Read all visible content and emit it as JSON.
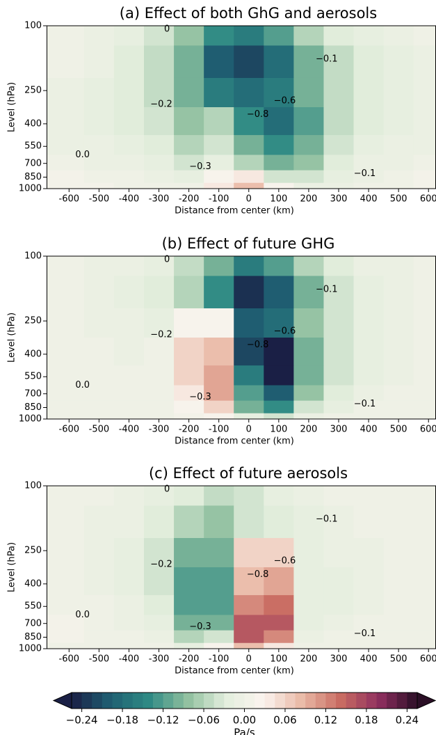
{
  "chart_data": [
    {
      "type": "contourf",
      "title": "(a) Effect of both GhG and aerosols",
      "xlabel": "Distance from center (km)",
      "ylabel": "Level (hPa)",
      "xlim": [
        -675,
        625
      ],
      "ylim": [
        1000,
        100
      ],
      "yscale": "log",
      "xticks": [
        -600,
        -500,
        -400,
        -300,
        -200,
        -100,
        0,
        100,
        200,
        300,
        400,
        500,
        600
      ],
      "yticks": [
        100,
        250,
        400,
        550,
        700,
        850,
        1000
      ],
      "x": [
        -600,
        -500,
        -400,
        -300,
        -200,
        -100,
        0,
        100,
        200,
        300,
        400,
        500,
        600
      ],
      "levels": [
        100,
        175,
        250,
        400,
        550,
        700,
        850,
        1000
      ],
      "values": [
        [
          0,
          -0.01,
          -0.02,
          -0.04,
          -0.08,
          -0.14,
          -0.16,
          -0.12,
          -0.06,
          -0.03,
          -0.02,
          -0.01,
          0
        ],
        [
          0,
          -0.01,
          -0.03,
          -0.05,
          -0.1,
          -0.2,
          -0.22,
          -0.18,
          -0.1,
          -0.05,
          -0.03,
          -0.02,
          -0.01
        ],
        [
          -0.01,
          -0.02,
          -0.03,
          -0.05,
          -0.1,
          -0.16,
          -0.18,
          -0.16,
          -0.1,
          -0.05,
          -0.03,
          -0.02,
          -0.01
        ],
        [
          -0.01,
          -0.02,
          -0.03,
          -0.04,
          -0.08,
          -0.06,
          -0.14,
          -0.18,
          -0.12,
          -0.05,
          -0.03,
          -0.02,
          -0.01
        ],
        [
          -0.01,
          -0.01,
          -0.02,
          -0.03,
          -0.06,
          -0.04,
          -0.1,
          -0.14,
          -0.1,
          -0.04,
          -0.02,
          -0.01,
          -0.01
        ],
        [
          0,
          -0.01,
          -0.01,
          -0.02,
          -0.04,
          -0.02,
          -0.06,
          -0.1,
          -0.08,
          -0.03,
          -0.01,
          -0.01,
          0
        ],
        [
          0.01,
          0,
          0,
          -0.01,
          -0.02,
          0.02,
          0.04,
          -0.04,
          -0.04,
          -0.02,
          -0.01,
          0,
          0.01
        ],
        [
          0.01,
          0.01,
          0,
          0,
          0,
          0.04,
          0.08,
          0.02,
          -0.01,
          -0.01,
          0,
          0,
          0.01
        ]
      ],
      "annotations": [
        {
          "text": "0",
          "x": -273,
          "level": 105
        },
        {
          "text": "−0.1",
          "x": 260,
          "level": 160
        },
        {
          "text": "−0.2",
          "x": -292,
          "level": 304
        },
        {
          "text": "−0.6",
          "x": 120,
          "level": 290
        },
        {
          "text": "−0.8",
          "x": 30,
          "level": 350
        },
        {
          "text": "−0.3",
          "x": -162,
          "level": 735
        },
        {
          "text": "−0.1",
          "x": 387,
          "level": 810
        },
        {
          "text": "0.0",
          "x": -555,
          "level": 620
        }
      ]
    },
    {
      "type": "contourf",
      "title": "(b) Effect of future GHG",
      "xlabel": "Distance from center (km)",
      "ylabel": "Level (hPa)",
      "xlim": [
        -675,
        625
      ],
      "ylim": [
        1000,
        100
      ],
      "yscale": "log",
      "xticks": [
        -600,
        -500,
        -400,
        -300,
        -200,
        -100,
        0,
        100,
        200,
        300,
        400,
        500,
        600
      ],
      "yticks": [
        100,
        250,
        400,
        550,
        700,
        850,
        1000
      ],
      "x": [
        -600,
        -500,
        -400,
        -300,
        -200,
        -100,
        0,
        100,
        200,
        300,
        400,
        500,
        600
      ],
      "levels": [
        100,
        175,
        250,
        400,
        550,
        700,
        850,
        1000
      ],
      "values": [
        [
          0,
          -0.01,
          -0.01,
          -0.02,
          -0.05,
          -0.1,
          -0.16,
          -0.12,
          -0.06,
          -0.03,
          -0.01,
          -0.01,
          0
        ],
        [
          0,
          -0.01,
          -0.02,
          -0.03,
          -0.06,
          -0.14,
          -0.24,
          -0.2,
          -0.1,
          -0.04,
          -0.02,
          -0.01,
          0
        ],
        [
          0,
          -0.01,
          -0.01,
          -0.02,
          0.02,
          0.02,
          -0.2,
          -0.18,
          -0.08,
          -0.04,
          -0.02,
          -0.01,
          0
        ],
        [
          0,
          0,
          -0.01,
          0,
          0.06,
          0.08,
          -0.22,
          -0.26,
          -0.1,
          -0.04,
          -0.02,
          -0.01,
          0
        ],
        [
          0,
          0,
          0,
          0,
          0.06,
          0.1,
          -0.16,
          -0.26,
          -0.1,
          -0.04,
          -0.02,
          -0.01,
          0
        ],
        [
          0,
          0,
          0,
          0,
          0.04,
          0.1,
          -0.12,
          -0.2,
          -0.08,
          -0.03,
          -0.01,
          0,
          0
        ],
        [
          0,
          0,
          0,
          0,
          0.02,
          0.06,
          -0.1,
          -0.14,
          -0.04,
          -0.02,
          0,
          0,
          0
        ],
        [
          0,
          0,
          0,
          0,
          0.01,
          0.02,
          -0.02,
          -0.04,
          -0.01,
          0,
          0,
          0,
          0
        ]
      ],
      "annotations": [
        {
          "text": "0",
          "x": -273,
          "level": 105
        },
        {
          "text": "−0.1",
          "x": 260,
          "level": 160
        },
        {
          "text": "−0.2",
          "x": -292,
          "level": 304
        },
        {
          "text": "−0.6",
          "x": 120,
          "level": 290
        },
        {
          "text": "−0.8",
          "x": 30,
          "level": 350
        },
        {
          "text": "−0.3",
          "x": -162,
          "level": 735
        },
        {
          "text": "−0.1",
          "x": 387,
          "level": 810
        },
        {
          "text": "0.0",
          "x": -555,
          "level": 620
        }
      ]
    },
    {
      "type": "contourf",
      "title": "(c) Effect of future aerosols",
      "xlabel": "Distance from center (km)",
      "ylabel": "Level (hPa)",
      "xlim": [
        -675,
        625
      ],
      "ylim": [
        1000,
        100
      ],
      "yscale": "log",
      "xticks": [
        -600,
        -500,
        -400,
        -300,
        -200,
        -100,
        0,
        100,
        200,
        300,
        400,
        500,
        600
      ],
      "yticks": [
        100,
        250,
        400,
        550,
        700,
        850,
        1000
      ],
      "x": [
        -600,
        -500,
        -400,
        -300,
        -200,
        -100,
        0,
        100,
        200,
        300,
        400,
        500,
        600
      ],
      "levels": [
        100,
        175,
        250,
        400,
        550,
        700,
        850,
        1000
      ],
      "values": [
        [
          0,
          0,
          -0.01,
          -0.02,
          -0.03,
          -0.05,
          -0.04,
          -0.02,
          -0.01,
          0,
          0,
          0,
          0
        ],
        [
          0,
          -0.01,
          -0.01,
          -0.03,
          -0.06,
          -0.08,
          -0.04,
          -0.03,
          -0.02,
          -0.01,
          0,
          0,
          0
        ],
        [
          0,
          -0.01,
          -0.02,
          -0.04,
          -0.1,
          -0.1,
          0.06,
          0.06,
          -0.02,
          -0.01,
          -0.01,
          0,
          0
        ],
        [
          0,
          -0.01,
          -0.02,
          -0.04,
          -0.12,
          -0.12,
          0.08,
          0.1,
          -0.02,
          -0.02,
          -0.01,
          0,
          0
        ],
        [
          0,
          0,
          -0.01,
          -0.03,
          -0.12,
          -0.12,
          0.12,
          0.14,
          -0.02,
          -0.02,
          -0.01,
          0,
          0
        ],
        [
          0.01,
          0,
          -0.01,
          -0.02,
          -0.1,
          -0.1,
          0.16,
          0.16,
          -0.02,
          -0.01,
          0,
          0,
          0
        ],
        [
          0.01,
          0,
          0,
          -0.01,
          -0.06,
          -0.04,
          0.16,
          0.12,
          -0.01,
          0,
          0,
          0,
          0
        ],
        [
          0,
          0,
          0,
          0,
          -0.02,
          0.02,
          0.08,
          0.04,
          0,
          0,
          0,
          0,
          0
        ]
      ],
      "annotations": [
        {
          "text": "0",
          "x": -273,
          "level": 105
        },
        {
          "text": "−0.1",
          "x": 260,
          "level": 160
        },
        {
          "text": "−0.2",
          "x": -292,
          "level": 304
        },
        {
          "text": "−0.6",
          "x": 120,
          "level": 290
        },
        {
          "text": "−0.8",
          "x": 30,
          "level": 350
        },
        {
          "text": "−0.3",
          "x": -162,
          "level": 735
        },
        {
          "text": "−0.1",
          "x": 387,
          "level": 810
        },
        {
          "text": "0.0",
          "x": -555,
          "level": 620
        }
      ]
    }
  ],
  "colorbar": {
    "label": "Pa/s",
    "lim": [
      -0.255,
      0.255
    ],
    "cmap": [
      "#1a1f45",
      "#1f5f72",
      "#2f8a84",
      "#8fbf9e",
      "#e3eedd",
      "#fbf4ef",
      "#e9b9a6",
      "#c96c62",
      "#8f2f5f",
      "#2b0f26"
    ],
    "ticks": [
      {
        "value": -0.24,
        "label": "−0.24"
      },
      {
        "value": -0.18,
        "label": "−0.18"
      },
      {
        "value": -0.12,
        "label": "−0.12"
      },
      {
        "value": -0.06,
        "label": "−0.06"
      },
      {
        "value": 0,
        "label": "0.00"
      },
      {
        "value": 0.06,
        "label": "0.06"
      },
      {
        "value": 0.12,
        "label": "0.12"
      },
      {
        "value": 0.18,
        "label": "0.18"
      },
      {
        "value": 0.24,
        "label": "0.24"
      }
    ]
  }
}
